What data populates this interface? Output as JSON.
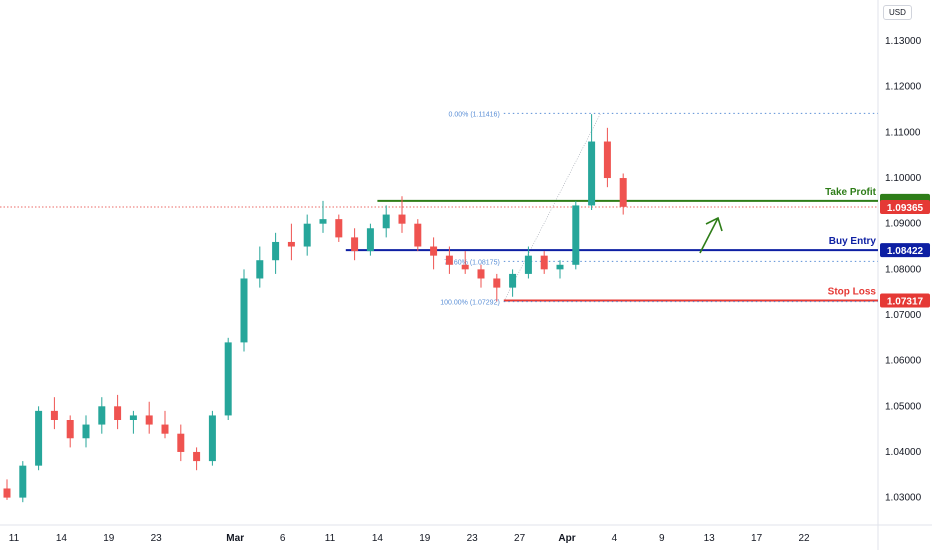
{
  "currency": "USD",
  "chart_data": {
    "type": "candlestick",
    "y_axis": {
      "min": 1.025,
      "max": 1.14,
      "ticks": [
        "1.13000",
        "1.12000",
        "1.11000",
        "1.10000",
        "1.09000",
        "1.08000",
        "1.07000",
        "1.06000",
        "1.05000",
        "1.04000",
        "1.03000"
      ]
    },
    "x_axis": {
      "ticks": [
        {
          "label": "11",
          "i": 0
        },
        {
          "label": "14",
          "i": 3
        },
        {
          "label": "19",
          "i": 6
        },
        {
          "label": "23",
          "i": 9
        },
        {
          "label": "Mar",
          "i": 14,
          "bold": true
        },
        {
          "label": "6",
          "i": 17
        },
        {
          "label": "11",
          "i": 20
        },
        {
          "label": "14",
          "i": 23
        },
        {
          "label": "19",
          "i": 26
        },
        {
          "label": "23",
          "i": 29
        },
        {
          "label": "27",
          "i": 32
        },
        {
          "label": "Apr",
          "i": 35,
          "bold": true
        },
        {
          "label": "4",
          "i": 38
        },
        {
          "label": "9",
          "i": 41
        },
        {
          "label": "13",
          "i": 44
        },
        {
          "label": "17",
          "i": 47
        },
        {
          "label": "22",
          "i": 50
        }
      ]
    },
    "last_index": 39,
    "candles": [
      [
        1.032,
        1.034,
        1.0295,
        1.03
      ],
      [
        1.03,
        1.038,
        1.029,
        1.037
      ],
      [
        1.037,
        1.05,
        1.036,
        1.049
      ],
      [
        1.049,
        1.052,
        1.045,
        1.047
      ],
      [
        1.047,
        1.048,
        1.041,
        1.043
      ],
      [
        1.043,
        1.048,
        1.041,
        1.046
      ],
      [
        1.046,
        1.052,
        1.044,
        1.05
      ],
      [
        1.05,
        1.0525,
        1.045,
        1.047
      ],
      [
        1.047,
        1.049,
        1.044,
        1.048
      ],
      [
        1.048,
        1.051,
        1.044,
        1.046
      ],
      [
        1.046,
        1.049,
        1.043,
        1.044
      ],
      [
        1.044,
        1.046,
        1.038,
        1.04
      ],
      [
        1.04,
        1.041,
        1.036,
        1.038
      ],
      [
        1.038,
        1.049,
        1.037,
        1.048
      ],
      [
        1.048,
        1.065,
        1.047,
        1.064
      ],
      [
        1.064,
        1.08,
        1.062,
        1.078
      ],
      [
        1.078,
        1.085,
        1.076,
        1.082
      ],
      [
        1.082,
        1.088,
        1.079,
        1.086
      ],
      [
        1.086,
        1.09,
        1.082,
        1.085
      ],
      [
        1.085,
        1.092,
        1.083,
        1.09
      ],
      [
        1.09,
        1.095,
        1.088,
        1.091
      ],
      [
        1.091,
        1.092,
        1.086,
        1.087
      ],
      [
        1.087,
        1.089,
        1.082,
        1.084
      ],
      [
        1.084,
        1.09,
        1.083,
        1.089
      ],
      [
        1.089,
        1.094,
        1.087,
        1.092
      ],
      [
        1.092,
        1.096,
        1.088,
        1.09
      ],
      [
        1.09,
        1.091,
        1.084,
        1.085
      ],
      [
        1.085,
        1.087,
        1.08,
        1.083
      ],
      [
        1.083,
        1.085,
        1.079,
        1.081
      ],
      [
        1.081,
        1.084,
        1.079,
        1.08
      ],
      [
        1.08,
        1.081,
        1.076,
        1.078
      ],
      [
        1.078,
        1.079,
        1.073,
        1.076
      ],
      [
        1.076,
        1.08,
        1.074,
        1.079
      ],
      [
        1.079,
        1.085,
        1.078,
        1.083
      ],
      [
        1.083,
        1.084,
        1.079,
        1.08
      ],
      [
        1.08,
        1.082,
        1.078,
        1.081
      ],
      [
        1.081,
        1.095,
        1.08,
        1.094
      ],
      [
        1.094,
        1.114,
        1.093,
        1.108
      ],
      [
        1.108,
        1.111,
        1.098,
        1.1
      ],
      [
        1.1,
        1.101,
        1.092,
        1.0937
      ]
    ],
    "levels": [
      {
        "name": "take-profit",
        "label": "Take Profit",
        "value": 1.095,
        "price_label": "",
        "color": "#2e7d18",
        "from_i": 23,
        "dotted": false
      },
      {
        "name": "buy-entry",
        "label": "Buy Entry",
        "value": 1.08422,
        "price_label": "1.08422",
        "color": "#0d1fa3",
        "from_i": 21,
        "dotted": false
      },
      {
        "name": "stop-loss",
        "label": "Stop Loss",
        "value": 1.07317,
        "price_label": "1.07317",
        "color": "#e53935",
        "from_i": 31,
        "dotted": false
      },
      {
        "name": "fib-0",
        "label": "0.00% (1.11416)",
        "value": 1.11416,
        "price_label": "",
        "color": "#5b8fd6",
        "from_i": 31,
        "dotted": true
      },
      {
        "name": "fib-786",
        "label": "78.60% (1.08175)",
        "value": 1.08175,
        "price_label": "",
        "color": "#5b8fd6",
        "from_i": 31,
        "dotted": true
      },
      {
        "name": "fib-100",
        "label": "100.00% (1.07292)",
        "value": 1.07292,
        "price_label": "",
        "color": "#5b8fd6",
        "from_i": 31,
        "dotted": true
      }
    ],
    "current_price": {
      "value": 1.09365,
      "label": "1.09365",
      "color": "#e53935"
    },
    "colors": {
      "up": "#26a69a",
      "down": "#ef5350",
      "grid": "#f0f3fa",
      "text": "#131722"
    }
  }
}
